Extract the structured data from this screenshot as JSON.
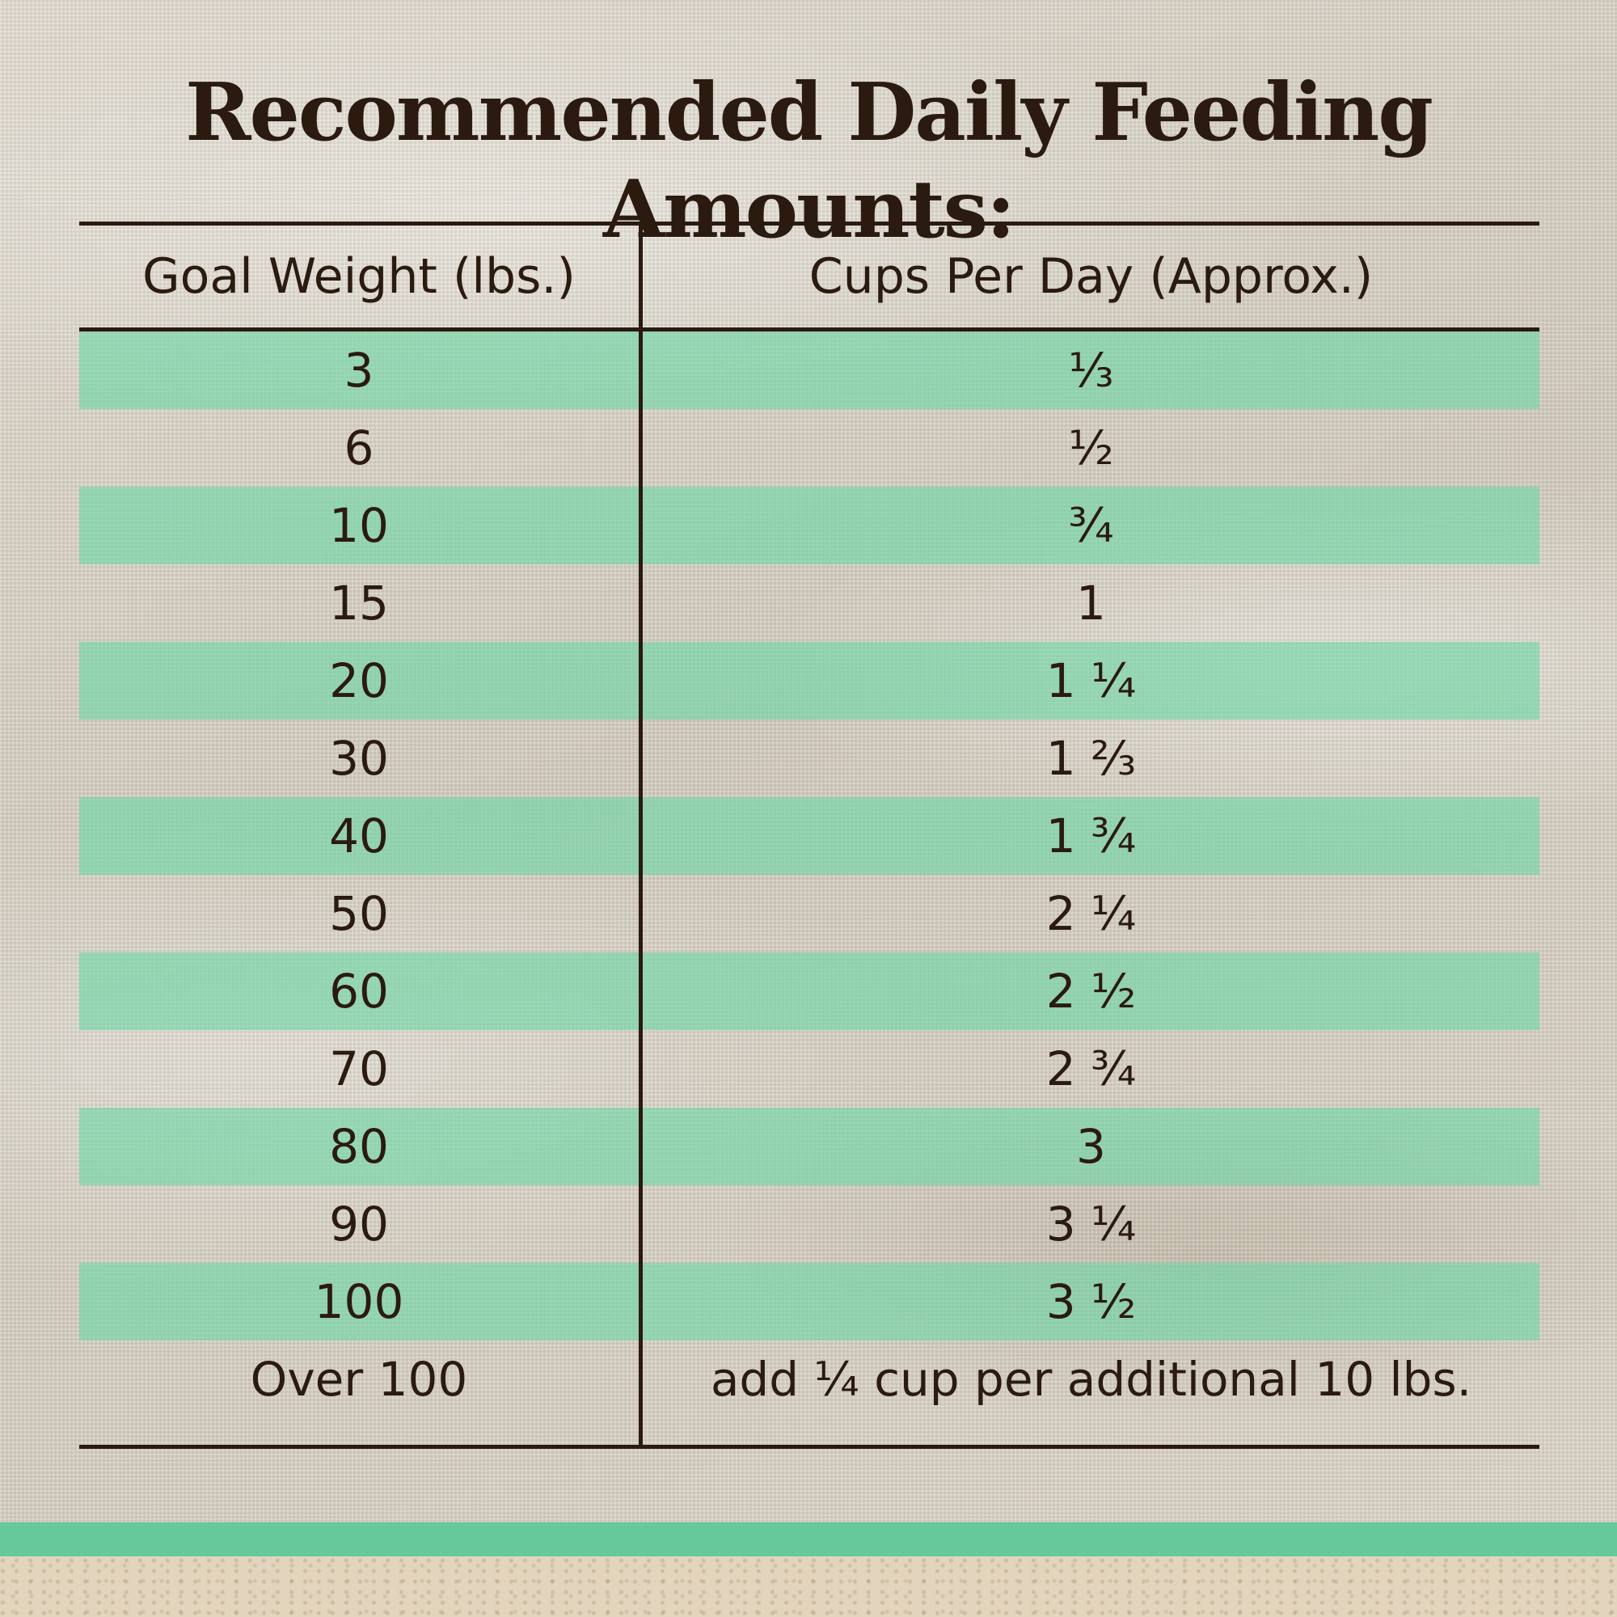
{
  "title": "Recommended Daily Feeding Amounts:",
  "table": {
    "columns": [
      "Goal Weight (lbs.)",
      "Cups Per Day (Approx.)"
    ],
    "rows": [
      {
        "weight": "3",
        "cups": "⅓"
      },
      {
        "weight": "6",
        "cups": "½"
      },
      {
        "weight": "10",
        "cups": "¾"
      },
      {
        "weight": "15",
        "cups": "1"
      },
      {
        "weight": "20",
        "cups": "1 ¼"
      },
      {
        "weight": "30",
        "cups": "1 ⅔"
      },
      {
        "weight": "40",
        "cups": "1 ¾"
      },
      {
        "weight": "50",
        "cups": "2 ¼"
      },
      {
        "weight": "60",
        "cups": "2 ½"
      },
      {
        "weight": "70",
        "cups": "2 ¾"
      },
      {
        "weight": "80",
        "cups": "3"
      },
      {
        "weight": "90",
        "cups": "3 ¼"
      },
      {
        "weight": "100",
        "cups": "3 ½"
      },
      {
        "weight": "Over 100",
        "cups": "add ¼ cup per additional 10 lbs."
      }
    ]
  },
  "colors": {
    "text": "#2b1a10",
    "row_highlight": "#6ed7a5",
    "footer_band": "#66c99c"
  }
}
